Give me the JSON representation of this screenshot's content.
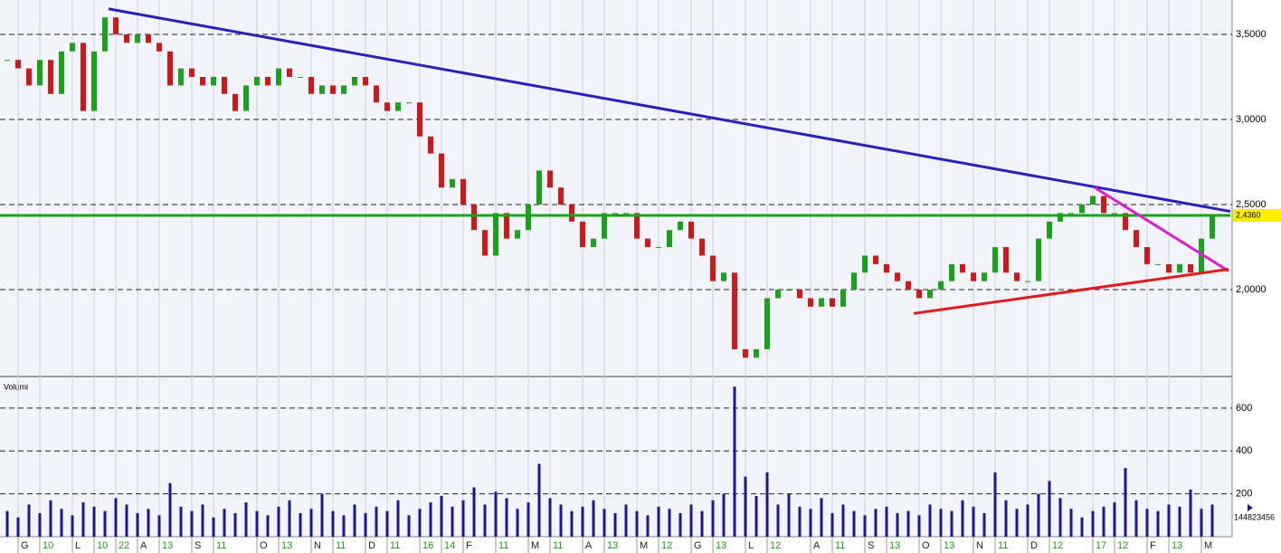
{
  "chart_data": [
    {
      "type": "candlestick",
      "categories": [
        null,
        "G",
        null,
        "10",
        null,
        null,
        "L",
        null,
        "10",
        null,
        "22",
        null,
        "A",
        null,
        "13",
        null,
        null,
        "S",
        null,
        "11",
        null,
        null,
        null,
        "O",
        null,
        "13",
        null,
        null,
        "N",
        null,
        "11",
        null,
        null,
        "D",
        null,
        "11",
        null,
        null,
        "16",
        null,
        "14",
        null,
        "F",
        null,
        null,
        "11",
        null,
        null,
        "M",
        null,
        "11",
        null,
        null,
        "A",
        null,
        "13",
        null,
        null,
        "M",
        null,
        "12",
        null,
        null,
        "G",
        null,
        "13",
        null,
        null,
        "L",
        null,
        "12",
        null,
        null,
        null,
        "A",
        null,
        "11",
        null,
        null,
        "S",
        null,
        "13",
        null,
        null,
        "O",
        null,
        "13",
        null,
        null,
        "N",
        null,
        "11",
        null,
        null,
        "D",
        null,
        "12",
        null,
        null,
        null,
        "17",
        null,
        "12",
        null,
        null,
        "F",
        null,
        "13",
        null,
        null,
        "M",
        null
      ],
      "values": [
        3.35,
        3.3,
        3.2,
        3.35,
        3.15,
        3.4,
        3.45,
        3.05,
        3.4,
        3.6,
        3.5,
        3.45,
        3.5,
        3.45,
        3.4,
        3.2,
        3.3,
        3.25,
        3.2,
        3.25,
        3.15,
        3.05,
        3.2,
        3.25,
        3.2,
        3.3,
        3.25,
        3.25,
        3.15,
        3.2,
        3.15,
        3.2,
        3.25,
        3.2,
        3.1,
        3.05,
        3.1,
        3.1,
        2.9,
        2.8,
        2.6,
        2.65,
        2.5,
        2.35,
        2.2,
        2.45,
        2.3,
        2.35,
        2.5,
        2.7,
        2.6,
        2.5,
        2.4,
        2.25,
        2.3,
        2.45,
        2.45,
        2.45,
        2.3,
        2.25,
        2.25,
        2.35,
        2.4,
        2.3,
        2.2,
        2.05,
        2.1,
        1.65,
        1.6,
        1.65,
        1.95,
        2.0,
        2.0,
        1.95,
        1.9,
        1.95,
        1.9,
        2.0,
        2.1,
        2.2,
        2.15,
        2.1,
        2.05,
        2.0,
        1.95,
        2.0,
        2.05,
        2.15,
        2.1,
        2.05,
        2.1,
        2.25,
        2.1,
        2.05,
        2.05,
        2.3,
        2.4,
        2.45,
        2.45,
        2.5,
        2.55,
        2.45,
        2.45,
        2.35,
        2.25,
        2.15,
        2.15,
        2.1,
        2.15,
        2.1,
        2.3,
        2.44
      ],
      "up_color": "#1aa31a",
      "down_color": "#d01818",
      "ylim": [
        1.495,
        3.702
      ],
      "yticks": [
        {
          "value": 2.0,
          "label": "2,0000"
        },
        {
          "value": 2.5,
          "label": "2,5000"
        },
        {
          "value": 3.0,
          "label": "3,0000"
        },
        {
          "value": 3.5,
          "label": "3,5000"
        }
      ],
      "last_value": {
        "value": 2.436,
        "label": "2,4360"
      },
      "trendlines": [
        {
          "color": "#2a22b8",
          "from": [
            9.33,
            3.65
          ],
          "to": [
            112.67,
            2.46
          ]
        },
        {
          "color": "#1aa31a",
          "from": [
            -0.67,
            2.436
          ],
          "to": [
            112.67,
            2.436
          ]
        },
        {
          "color": "#d81ed0",
          "from": [
            100.17,
            2.6
          ],
          "to": [
            112.5,
            2.11
          ]
        },
        {
          "color": "#e01c1c",
          "from": [
            83.5,
            1.86
          ],
          "to": [
            112.5,
            2.12
          ]
        }
      ]
    },
    {
      "type": "bar",
      "title": "Volumi",
      "color": "#1a1a8c",
      "values": [
        120,
        90,
        150,
        110,
        170,
        130,
        100,
        160,
        140,
        120,
        180,
        150,
        110,
        130,
        100,
        250,
        140,
        120,
        150,
        90,
        130,
        110,
        160,
        120,
        100,
        140,
        170,
        110,
        130,
        200,
        120,
        100,
        150,
        110,
        140,
        120,
        170,
        100,
        130,
        160,
        190,
        140,
        170,
        230,
        150,
        210,
        180,
        130,
        160,
        340,
        180,
        150,
        120,
        140,
        170,
        130,
        110,
        150,
        120,
        100,
        140,
        130,
        110,
        150,
        120,
        170,
        200,
        700,
        280,
        190,
        300,
        150,
        200,
        140,
        130,
        180,
        110,
        150,
        120,
        100,
        130,
        140,
        110,
        120,
        100,
        150,
        130,
        120,
        170,
        140,
        110,
        300,
        170,
        130,
        150,
        200,
        260,
        180,
        130,
        90,
        120,
        140,
        160,
        320,
        170,
        130,
        120,
        150,
        140,
        220,
        130,
        150
      ],
      "ylim": [
        0,
        739
      ],
      "yticks": [
        200,
        400,
        600
      ],
      "last_label": "144823456"
    }
  ]
}
